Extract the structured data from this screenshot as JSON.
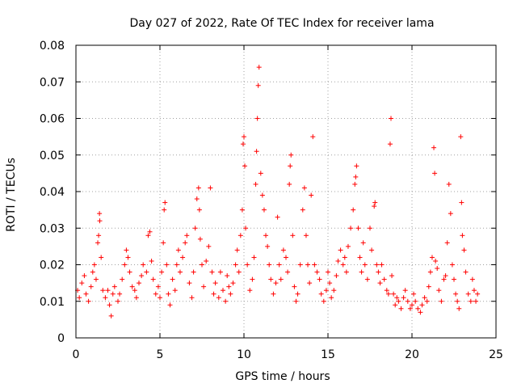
{
  "chart_data": {
    "type": "scatter",
    "title": "Day 027 of 2022, Rate Of TEC Index for receiver lama",
    "xlabel": "GPS time / hours",
    "ylabel": "ROTI / TECUs",
    "xlim": [
      0,
      25
    ],
    "ylim": [
      0,
      0.08
    ],
    "x_ticks": [
      "0",
      "5",
      "10",
      "15",
      "20",
      "25"
    ],
    "y_ticks": [
      "0",
      "0.01",
      "0.02",
      "0.03",
      "0.04",
      "0.05",
      "0.06",
      "0.07",
      "0.08"
    ],
    "grid": true,
    "legend": "none",
    "marker": "plus",
    "color": "#ff0000",
    "series": [
      {
        "values": [
          [
            0.1,
            0.013
          ],
          [
            0.2,
            0.011
          ],
          [
            0.35,
            0.015
          ],
          [
            0.5,
            0.017
          ],
          [
            0.6,
            0.012
          ],
          [
            0.75,
            0.01
          ],
          [
            0.9,
            0.014
          ],
          [
            1.0,
            0.018
          ],
          [
            1.1,
            0.02
          ],
          [
            1.2,
            0.016
          ],
          [
            1.3,
            0.026
          ],
          [
            1.35,
            0.028
          ],
          [
            1.4,
            0.034
          ],
          [
            1.42,
            0.032
          ],
          [
            1.5,
            0.022
          ],
          [
            1.6,
            0.013
          ],
          [
            1.75,
            0.011
          ],
          [
            1.9,
            0.013
          ],
          [
            2.0,
            0.009
          ],
          [
            2.1,
            0.006
          ],
          [
            2.2,
            0.012
          ],
          [
            2.3,
            0.014
          ],
          [
            2.5,
            0.01
          ],
          [
            2.6,
            0.012
          ],
          [
            2.75,
            0.016
          ],
          [
            2.9,
            0.02
          ],
          [
            3.0,
            0.024
          ],
          [
            3.1,
            0.022
          ],
          [
            3.2,
            0.018
          ],
          [
            3.35,
            0.014
          ],
          [
            3.5,
            0.013
          ],
          [
            3.6,
            0.011
          ],
          [
            3.75,
            0.015
          ],
          [
            3.9,
            0.017
          ],
          [
            4.0,
            0.02
          ],
          [
            4.2,
            0.018
          ],
          [
            4.3,
            0.028
          ],
          [
            4.4,
            0.029
          ],
          [
            4.5,
            0.021
          ],
          [
            4.6,
            0.016
          ],
          [
            4.75,
            0.012
          ],
          [
            4.9,
            0.014
          ],
          [
            5.0,
            0.011
          ],
          [
            5.1,
            0.018
          ],
          [
            5.2,
            0.026
          ],
          [
            5.25,
            0.035
          ],
          [
            5.3,
            0.037
          ],
          [
            5.4,
            0.02
          ],
          [
            5.5,
            0.012
          ],
          [
            5.6,
            0.009
          ],
          [
            5.75,
            0.016
          ],
          [
            5.9,
            0.013
          ],
          [
            6.0,
            0.02
          ],
          [
            6.1,
            0.024
          ],
          [
            6.2,
            0.018
          ],
          [
            6.35,
            0.022
          ],
          [
            6.5,
            0.026
          ],
          [
            6.6,
            0.028
          ],
          [
            6.75,
            0.015
          ],
          [
            6.9,
            0.011
          ],
          [
            7.0,
            0.018
          ],
          [
            7.1,
            0.03
          ],
          [
            7.2,
            0.038
          ],
          [
            7.3,
            0.041
          ],
          [
            7.35,
            0.035
          ],
          [
            7.4,
            0.027
          ],
          [
            7.5,
            0.02
          ],
          [
            7.6,
            0.014
          ],
          [
            7.75,
            0.021
          ],
          [
            7.9,
            0.025
          ],
          [
            8.0,
            0.041
          ],
          [
            8.1,
            0.018
          ],
          [
            8.2,
            0.012
          ],
          [
            8.3,
            0.015
          ],
          [
            8.5,
            0.011
          ],
          [
            8.6,
            0.018
          ],
          [
            8.75,
            0.013
          ],
          [
            8.9,
            0.01
          ],
          [
            9.0,
            0.017
          ],
          [
            9.1,
            0.014
          ],
          [
            9.2,
            0.012
          ],
          [
            9.35,
            0.015
          ],
          [
            9.5,
            0.02
          ],
          [
            9.6,
            0.024
          ],
          [
            9.7,
            0.018
          ],
          [
            9.8,
            0.028
          ],
          [
            9.9,
            0.035
          ],
          [
            9.95,
            0.053
          ],
          [
            10.0,
            0.055
          ],
          [
            10.05,
            0.047
          ],
          [
            10.1,
            0.03
          ],
          [
            10.2,
            0.02
          ],
          [
            10.35,
            0.013
          ],
          [
            10.5,
            0.016
          ],
          [
            10.6,
            0.022
          ],
          [
            10.7,
            0.042
          ],
          [
            10.75,
            0.051
          ],
          [
            10.8,
            0.06
          ],
          [
            10.85,
            0.069
          ],
          [
            10.9,
            0.074
          ],
          [
            11.0,
            0.045
          ],
          [
            11.1,
            0.039
          ],
          [
            11.2,
            0.035
          ],
          [
            11.3,
            0.028
          ],
          [
            11.4,
            0.025
          ],
          [
            11.5,
            0.02
          ],
          [
            11.6,
            0.016
          ],
          [
            11.75,
            0.012
          ],
          [
            11.9,
            0.015
          ],
          [
            12.0,
            0.033
          ],
          [
            12.1,
            0.02
          ],
          [
            12.2,
            0.016
          ],
          [
            12.35,
            0.024
          ],
          [
            12.5,
            0.022
          ],
          [
            12.6,
            0.018
          ],
          [
            12.7,
            0.042
          ],
          [
            12.75,
            0.047
          ],
          [
            12.8,
            0.05
          ],
          [
            12.9,
            0.028
          ],
          [
            13.0,
            0.014
          ],
          [
            13.1,
            0.01
          ],
          [
            13.2,
            0.012
          ],
          [
            13.35,
            0.02
          ],
          [
            13.5,
            0.035
          ],
          [
            13.6,
            0.041
          ],
          [
            13.7,
            0.028
          ],
          [
            13.8,
            0.02
          ],
          [
            13.9,
            0.015
          ],
          [
            14.0,
            0.039
          ],
          [
            14.1,
            0.055
          ],
          [
            14.2,
            0.02
          ],
          [
            14.35,
            0.018
          ],
          [
            14.5,
            0.016
          ],
          [
            14.6,
            0.012
          ],
          [
            14.75,
            0.01
          ],
          [
            14.9,
            0.013
          ],
          [
            15.0,
            0.018
          ],
          [
            15.1,
            0.015
          ],
          [
            15.2,
            0.011
          ],
          [
            15.35,
            0.013
          ],
          [
            15.5,
            0.017
          ],
          [
            15.6,
            0.021
          ],
          [
            15.75,
            0.024
          ],
          [
            15.9,
            0.02
          ],
          [
            16.0,
            0.022
          ],
          [
            16.1,
            0.018
          ],
          [
            16.2,
            0.025
          ],
          [
            16.35,
            0.03
          ],
          [
            16.5,
            0.035
          ],
          [
            16.6,
            0.042
          ],
          [
            16.65,
            0.044
          ],
          [
            16.7,
            0.047
          ],
          [
            16.8,
            0.03
          ],
          [
            16.9,
            0.022
          ],
          [
            17.0,
            0.018
          ],
          [
            17.1,
            0.026
          ],
          [
            17.2,
            0.02
          ],
          [
            17.35,
            0.016
          ],
          [
            17.5,
            0.03
          ],
          [
            17.6,
            0.024
          ],
          [
            17.75,
            0.036
          ],
          [
            17.8,
            0.037
          ],
          [
            17.9,
            0.02
          ],
          [
            18.0,
            0.018
          ],
          [
            18.1,
            0.015
          ],
          [
            18.2,
            0.02
          ],
          [
            18.35,
            0.016
          ],
          [
            18.5,
            0.013
          ],
          [
            18.6,
            0.012
          ],
          [
            18.7,
            0.053
          ],
          [
            18.75,
            0.06
          ],
          [
            18.8,
            0.017
          ],
          [
            18.9,
            0.012
          ],
          [
            19.0,
            0.009
          ],
          [
            19.1,
            0.011
          ],
          [
            19.2,
            0.01
          ],
          [
            19.35,
            0.008
          ],
          [
            19.5,
            0.011
          ],
          [
            19.6,
            0.013
          ],
          [
            19.75,
            0.01
          ],
          [
            19.9,
            0.008
          ],
          [
            20.0,
            0.009
          ],
          [
            20.1,
            0.012
          ],
          [
            20.2,
            0.01
          ],
          [
            20.35,
            0.008
          ],
          [
            20.5,
            0.007
          ],
          [
            20.6,
            0.009
          ],
          [
            20.75,
            0.011
          ],
          [
            20.9,
            0.01
          ],
          [
            21.0,
            0.014
          ],
          [
            21.1,
            0.018
          ],
          [
            21.2,
            0.022
          ],
          [
            21.3,
            0.052
          ],
          [
            21.35,
            0.045
          ],
          [
            21.4,
            0.021
          ],
          [
            21.5,
            0.019
          ],
          [
            21.6,
            0.013
          ],
          [
            21.75,
            0.01
          ],
          [
            21.9,
            0.016
          ],
          [
            22.0,
            0.017
          ],
          [
            22.1,
            0.026
          ],
          [
            22.2,
            0.042
          ],
          [
            22.3,
            0.034
          ],
          [
            22.4,
            0.02
          ],
          [
            22.5,
            0.016
          ],
          [
            22.6,
            0.012
          ],
          [
            22.7,
            0.01
          ],
          [
            22.8,
            0.008
          ],
          [
            22.9,
            0.055
          ],
          [
            22.95,
            0.037
          ],
          [
            23.0,
            0.028
          ],
          [
            23.1,
            0.024
          ],
          [
            23.2,
            0.018
          ],
          [
            23.35,
            0.012
          ],
          [
            23.5,
            0.01
          ],
          [
            23.6,
            0.016
          ],
          [
            23.7,
            0.013
          ],
          [
            23.8,
            0.01
          ],
          [
            23.9,
            0.012
          ]
        ]
      }
    ]
  }
}
